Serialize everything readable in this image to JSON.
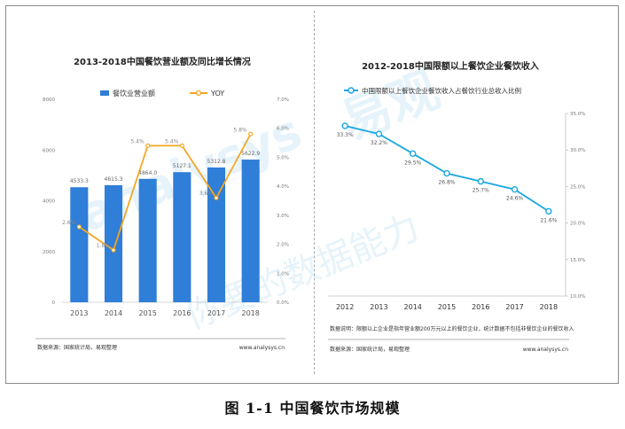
{
  "left_chart": {
    "title": "2013-2018中国餐饮营业额及同比增长情况",
    "legend_bar": "餐饮业营业额",
    "legend_line": "YOY",
    "source": "数据来源：国家统计局，易观整理",
    "site": "www.analysys.cn"
  },
  "right_chart": {
    "title": "2012-2018中国限额以上餐饮企业餐饮收入",
    "legend_line": "中国限额以上餐饮企业餐饮收入占餐饮行业总收入比例",
    "note": "数据说明：限额以上企业是指年营业额200万元以上的餐饮企业，统计数据不包括非餐饮企业的餐饮收入",
    "source": "数据来源：国家统计局，易观整理",
    "site": "www.analysys.cn"
  },
  "figure_caption": "图 1-1 中国餐饮市场规模",
  "watermark": {
    "brand_latin": "analysys",
    "brand_cn": "易观",
    "slogan": "你要的数据能力"
  },
  "colors": {
    "bar": "#2f7ed8",
    "yoy_line": "#f5a623",
    "ratio_line": "#1aa7e0"
  },
  "chart_data": [
    {
      "type": "bar",
      "categories": [
        "2013",
        "2014",
        "2015",
        "2016",
        "2017",
        "2018"
      ],
      "series": [
        {
          "name": "餐饮业营业额",
          "values": [
            4533.3,
            4615.3,
            4864.0,
            5127.1,
            5312.8,
            5622.9
          ],
          "labels": [
            "4533.3",
            "4615.3",
            "4864.0",
            "5127.1",
            "5312.8",
            "5622.9"
          ],
          "axis": "left"
        },
        {
          "name": "YOY",
          "type": "line",
          "values": [
            2.6,
            1.8,
            5.4,
            5.4,
            3.6,
            5.8
          ],
          "labels": [
            "2.6%",
            "1.8%",
            "5.4%",
            "5.4%",
            "3.6%",
            "5.8%"
          ],
          "axis": "right"
        }
      ],
      "ylim": [
        0,
        8000
      ],
      "yticks": [
        "0",
        "2000",
        "4000",
        "6000",
        "8000"
      ],
      "y2lim": [
        0,
        7
      ],
      "y2ticks": [
        "0.0%",
        "1.0%",
        "2.0%",
        "3.0%",
        "4.0%",
        "5.0%",
        "6.0%",
        "7.0%"
      ],
      "legend": "top"
    },
    {
      "type": "line",
      "categories": [
        "2012",
        "2013",
        "2014",
        "2015",
        "2016",
        "2017",
        "2018"
      ],
      "series": [
        {
          "name": "中国限额以上餐饮企业餐饮收入占餐饮行业总收入比例",
          "values": [
            33.3,
            32.2,
            29.5,
            26.8,
            25.7,
            24.6,
            21.6
          ],
          "labels": [
            "33.3%",
            "32.2%",
            "29.5%",
            "26.8%",
            "25.7%",
            "24.6%",
            "21.6%"
          ]
        }
      ],
      "ylim": [
        10,
        35
      ],
      "yticks": [
        "10.0%",
        "15.0%",
        "20.0%",
        "25.0%",
        "30.0%",
        "35.0%"
      ],
      "y_axis_side": "right",
      "legend": "top"
    }
  ]
}
